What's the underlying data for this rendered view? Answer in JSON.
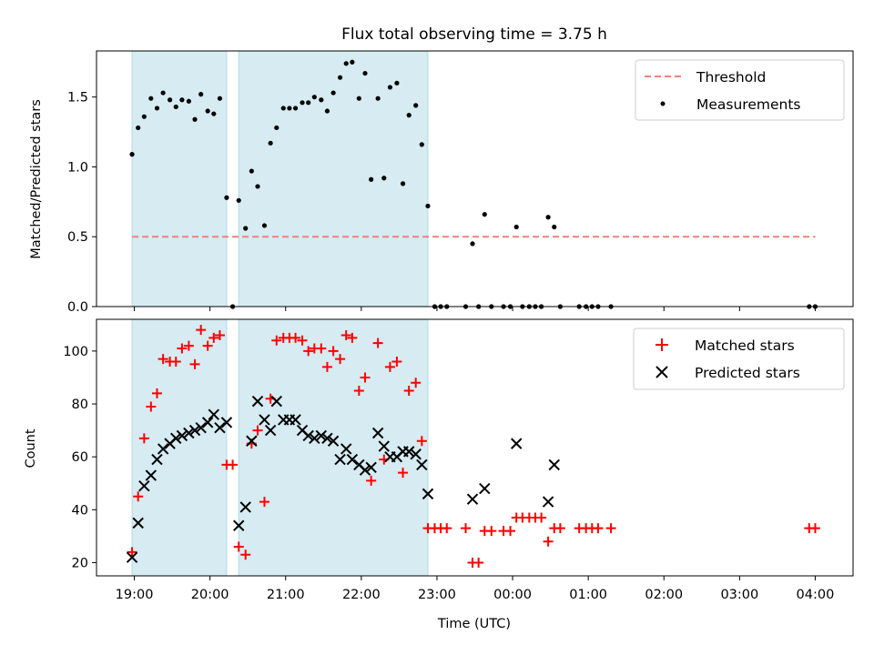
{
  "chart_data": [
    {
      "panel": "top",
      "type": "scatter",
      "title": "Flux total observing time = 3.75 h",
      "ylabel": "Matched/Predicted stars",
      "xlabel": "",
      "xlim_hours": [
        18.5,
        28.5
      ],
      "ylim": [
        0,
        1.83
      ],
      "y_ticks": [
        {
          "value": 0.0,
          "label": "0.0"
        },
        {
          "value": 0.5,
          "label": "0.5"
        },
        {
          "value": 1.0,
          "label": "1.0"
        },
        {
          "value": 1.5,
          "label": "1.5"
        }
      ],
      "shaded_intervals_hours": [
        [
          18.97,
          20.22
        ],
        [
          20.38,
          22.88
        ]
      ],
      "threshold": {
        "value": 0.5,
        "from_hour": 18.97,
        "to_hour": 28.0,
        "color": "#f08080"
      },
      "legend": {
        "position": "top-right",
        "entries": [
          "Threshold",
          "Measurements"
        ]
      },
      "series": [
        {
          "name": "Measurements",
          "color": "#000000",
          "points": [
            [
              18.97,
              1.09
            ],
            [
              19.05,
              1.28
            ],
            [
              19.13,
              1.36
            ],
            [
              19.22,
              1.49
            ],
            [
              19.3,
              1.42
            ],
            [
              19.38,
              1.53
            ],
            [
              19.47,
              1.48
            ],
            [
              19.55,
              1.43
            ],
            [
              19.63,
              1.48
            ],
            [
              19.72,
              1.47
            ],
            [
              19.8,
              1.34
            ],
            [
              19.88,
              1.52
            ],
            [
              19.97,
              1.4
            ],
            [
              20.05,
              1.38
            ],
            [
              20.13,
              1.49
            ],
            [
              20.22,
              0.78
            ],
            [
              20.3,
              0.0
            ],
            [
              20.38,
              0.76
            ],
            [
              20.47,
              0.56
            ],
            [
              20.55,
              0.97
            ],
            [
              20.63,
              0.86
            ],
            [
              20.72,
              0.58
            ],
            [
              20.8,
              1.17
            ],
            [
              20.88,
              1.28
            ],
            [
              20.97,
              1.42
            ],
            [
              21.05,
              1.42
            ],
            [
              21.13,
              1.42
            ],
            [
              21.22,
              1.46
            ],
            [
              21.3,
              1.46
            ],
            [
              21.38,
              1.5
            ],
            [
              21.47,
              1.48
            ],
            [
              21.55,
              1.4
            ],
            [
              21.63,
              1.53
            ],
            [
              21.72,
              1.64
            ],
            [
              21.8,
              1.74
            ],
            [
              21.88,
              1.75
            ],
            [
              21.97,
              1.49
            ],
            [
              22.05,
              1.67
            ],
            [
              22.13,
              0.91
            ],
            [
              22.22,
              1.49
            ],
            [
              22.3,
              0.92
            ],
            [
              22.38,
              1.57
            ],
            [
              22.47,
              1.6
            ],
            [
              22.55,
              0.88
            ],
            [
              22.63,
              1.37
            ],
            [
              22.72,
              1.44
            ],
            [
              22.8,
              1.16
            ],
            [
              22.88,
              0.72
            ],
            [
              22.97,
              0.0
            ],
            [
              23.05,
              0.0
            ],
            [
              23.13,
              0.0
            ],
            [
              23.38,
              0.0
            ],
            [
              23.47,
              0.45
            ],
            [
              23.55,
              0.0
            ],
            [
              23.63,
              0.66
            ],
            [
              23.72,
              0.0
            ],
            [
              23.88,
              0.0
            ],
            [
              23.97,
              0.0
            ],
            [
              24.05,
              0.57
            ],
            [
              24.13,
              0.0
            ],
            [
              24.22,
              0.0
            ],
            [
              24.3,
              0.0
            ],
            [
              24.38,
              0.0
            ],
            [
              24.47,
              0.64
            ],
            [
              24.55,
              0.57
            ],
            [
              24.63,
              0.0
            ],
            [
              24.88,
              0.0
            ],
            [
              24.97,
              0.0
            ],
            [
              25.05,
              0.0
            ],
            [
              25.13,
              0.0
            ],
            [
              25.3,
              0.0
            ],
            [
              27.92,
              0.0
            ],
            [
              28.0,
              0.0
            ]
          ]
        }
      ]
    },
    {
      "panel": "bottom",
      "type": "scatter",
      "title": "",
      "ylabel": "Count",
      "xlabel": "Time (UTC)",
      "xlim_hours": [
        18.5,
        28.5
      ],
      "ylim": [
        15,
        112
      ],
      "x_ticks": [
        {
          "hour": 19,
          "label": "19:00"
        },
        {
          "hour": 20,
          "label": "20:00"
        },
        {
          "hour": 21,
          "label": "21:00"
        },
        {
          "hour": 22,
          "label": "22:00"
        },
        {
          "hour": 23,
          "label": "23:00"
        },
        {
          "hour": 24,
          "label": "00:00"
        },
        {
          "hour": 25,
          "label": "01:00"
        },
        {
          "hour": 26,
          "label": "02:00"
        },
        {
          "hour": 27,
          "label": "03:00"
        },
        {
          "hour": 28,
          "label": "04:00"
        }
      ],
      "y_ticks": [
        {
          "value": 20,
          "label": "20"
        },
        {
          "value": 40,
          "label": "40"
        },
        {
          "value": 60,
          "label": "60"
        },
        {
          "value": 80,
          "label": "80"
        },
        {
          "value": 100,
          "label": "100"
        }
      ],
      "shaded_intervals_hours": [
        [
          18.97,
          20.22
        ],
        [
          20.38,
          22.88
        ]
      ],
      "legend": {
        "position": "top-right",
        "entries": [
          "Matched stars",
          "Predicted stars"
        ]
      },
      "series": [
        {
          "name": "Matched stars",
          "marker": "plus",
          "color": "#ff0000",
          "points": [
            [
              18.97,
              24
            ],
            [
              19.05,
              45
            ],
            [
              19.13,
              67
            ],
            [
              19.22,
              79
            ],
            [
              19.3,
              84
            ],
            [
              19.38,
              97
            ],
            [
              19.47,
              96
            ],
            [
              19.55,
              96
            ],
            [
              19.63,
              101
            ],
            [
              19.72,
              102
            ],
            [
              19.8,
              95
            ],
            [
              19.88,
              108
            ],
            [
              19.97,
              102
            ],
            [
              20.05,
              105
            ],
            [
              20.13,
              106
            ],
            [
              20.22,
              57
            ],
            [
              20.3,
              57
            ],
            [
              20.38,
              26
            ],
            [
              20.47,
              23
            ],
            [
              20.55,
              65
            ],
            [
              20.63,
              70
            ],
            [
              20.72,
              43
            ],
            [
              20.8,
              82
            ],
            [
              20.88,
              104
            ],
            [
              20.97,
              105
            ],
            [
              21.05,
              105
            ],
            [
              21.13,
              105
            ],
            [
              21.22,
              104
            ],
            [
              21.3,
              100
            ],
            [
              21.38,
              101
            ],
            [
              21.47,
              101
            ],
            [
              21.55,
              94
            ],
            [
              21.63,
              100
            ],
            [
              21.72,
              97
            ],
            [
              21.8,
              106
            ],
            [
              21.88,
              105
            ],
            [
              21.97,
              85
            ],
            [
              22.05,
              90
            ],
            [
              22.13,
              51
            ],
            [
              22.22,
              103
            ],
            [
              22.3,
              59
            ],
            [
              22.38,
              94
            ],
            [
              22.47,
              96
            ],
            [
              22.55,
              54
            ],
            [
              22.63,
              85
            ],
            [
              22.72,
              88
            ],
            [
              22.8,
              66
            ],
            [
              22.88,
              33
            ],
            [
              22.97,
              33
            ],
            [
              23.05,
              33
            ],
            [
              23.13,
              33
            ],
            [
              23.38,
              33
            ],
            [
              23.47,
              20
            ],
            [
              23.55,
              20
            ],
            [
              23.63,
              32
            ],
            [
              23.72,
              32
            ],
            [
              23.88,
              32
            ],
            [
              23.97,
              32
            ],
            [
              24.05,
              37
            ],
            [
              24.13,
              37
            ],
            [
              24.22,
              37
            ],
            [
              24.3,
              37
            ],
            [
              24.38,
              37
            ],
            [
              24.47,
              28
            ],
            [
              24.55,
              33
            ],
            [
              24.63,
              33
            ],
            [
              24.88,
              33
            ],
            [
              24.97,
              33
            ],
            [
              25.05,
              33
            ],
            [
              25.13,
              33
            ],
            [
              25.3,
              33
            ],
            [
              27.92,
              33
            ],
            [
              28.0,
              33
            ]
          ]
        },
        {
          "name": "Predicted stars",
          "marker": "x",
          "color": "#000000",
          "points": [
            [
              18.97,
              22
            ],
            [
              19.05,
              35
            ],
            [
              19.13,
              49
            ],
            [
              19.22,
              53
            ],
            [
              19.3,
              59
            ],
            [
              19.38,
              63
            ],
            [
              19.47,
              65
            ],
            [
              19.55,
              67
            ],
            [
              19.63,
              68
            ],
            [
              19.72,
              69
            ],
            [
              19.8,
              70
            ],
            [
              19.88,
              71
            ],
            [
              19.97,
              73
            ],
            [
              20.05,
              76
            ],
            [
              20.13,
              71
            ],
            [
              20.22,
              73
            ],
            [
              20.38,
              34
            ],
            [
              20.47,
              41
            ],
            [
              20.55,
              66
            ],
            [
              20.63,
              81
            ],
            [
              20.72,
              74
            ],
            [
              20.8,
              70
            ],
            [
              20.88,
              81
            ],
            [
              20.97,
              74
            ],
            [
              21.05,
              74
            ],
            [
              21.13,
              74
            ],
            [
              21.22,
              70
            ],
            [
              21.3,
              68
            ],
            [
              21.38,
              67
            ],
            [
              21.47,
              68
            ],
            [
              21.55,
              67
            ],
            [
              21.63,
              66
            ],
            [
              21.72,
              59
            ],
            [
              21.8,
              63
            ],
            [
              21.88,
              59
            ],
            [
              21.97,
              57
            ],
            [
              22.05,
              55
            ],
            [
              22.13,
              56
            ],
            [
              22.22,
              69
            ],
            [
              22.3,
              64
            ],
            [
              22.38,
              60
            ],
            [
              22.47,
              60
            ],
            [
              22.55,
              62
            ],
            [
              22.63,
              62
            ],
            [
              22.72,
              61
            ],
            [
              22.8,
              57
            ],
            [
              22.88,
              46
            ],
            [
              23.47,
              44
            ],
            [
              23.63,
              48
            ],
            [
              24.05,
              65
            ],
            [
              24.47,
              43
            ],
            [
              24.55,
              57
            ]
          ]
        }
      ]
    }
  ]
}
